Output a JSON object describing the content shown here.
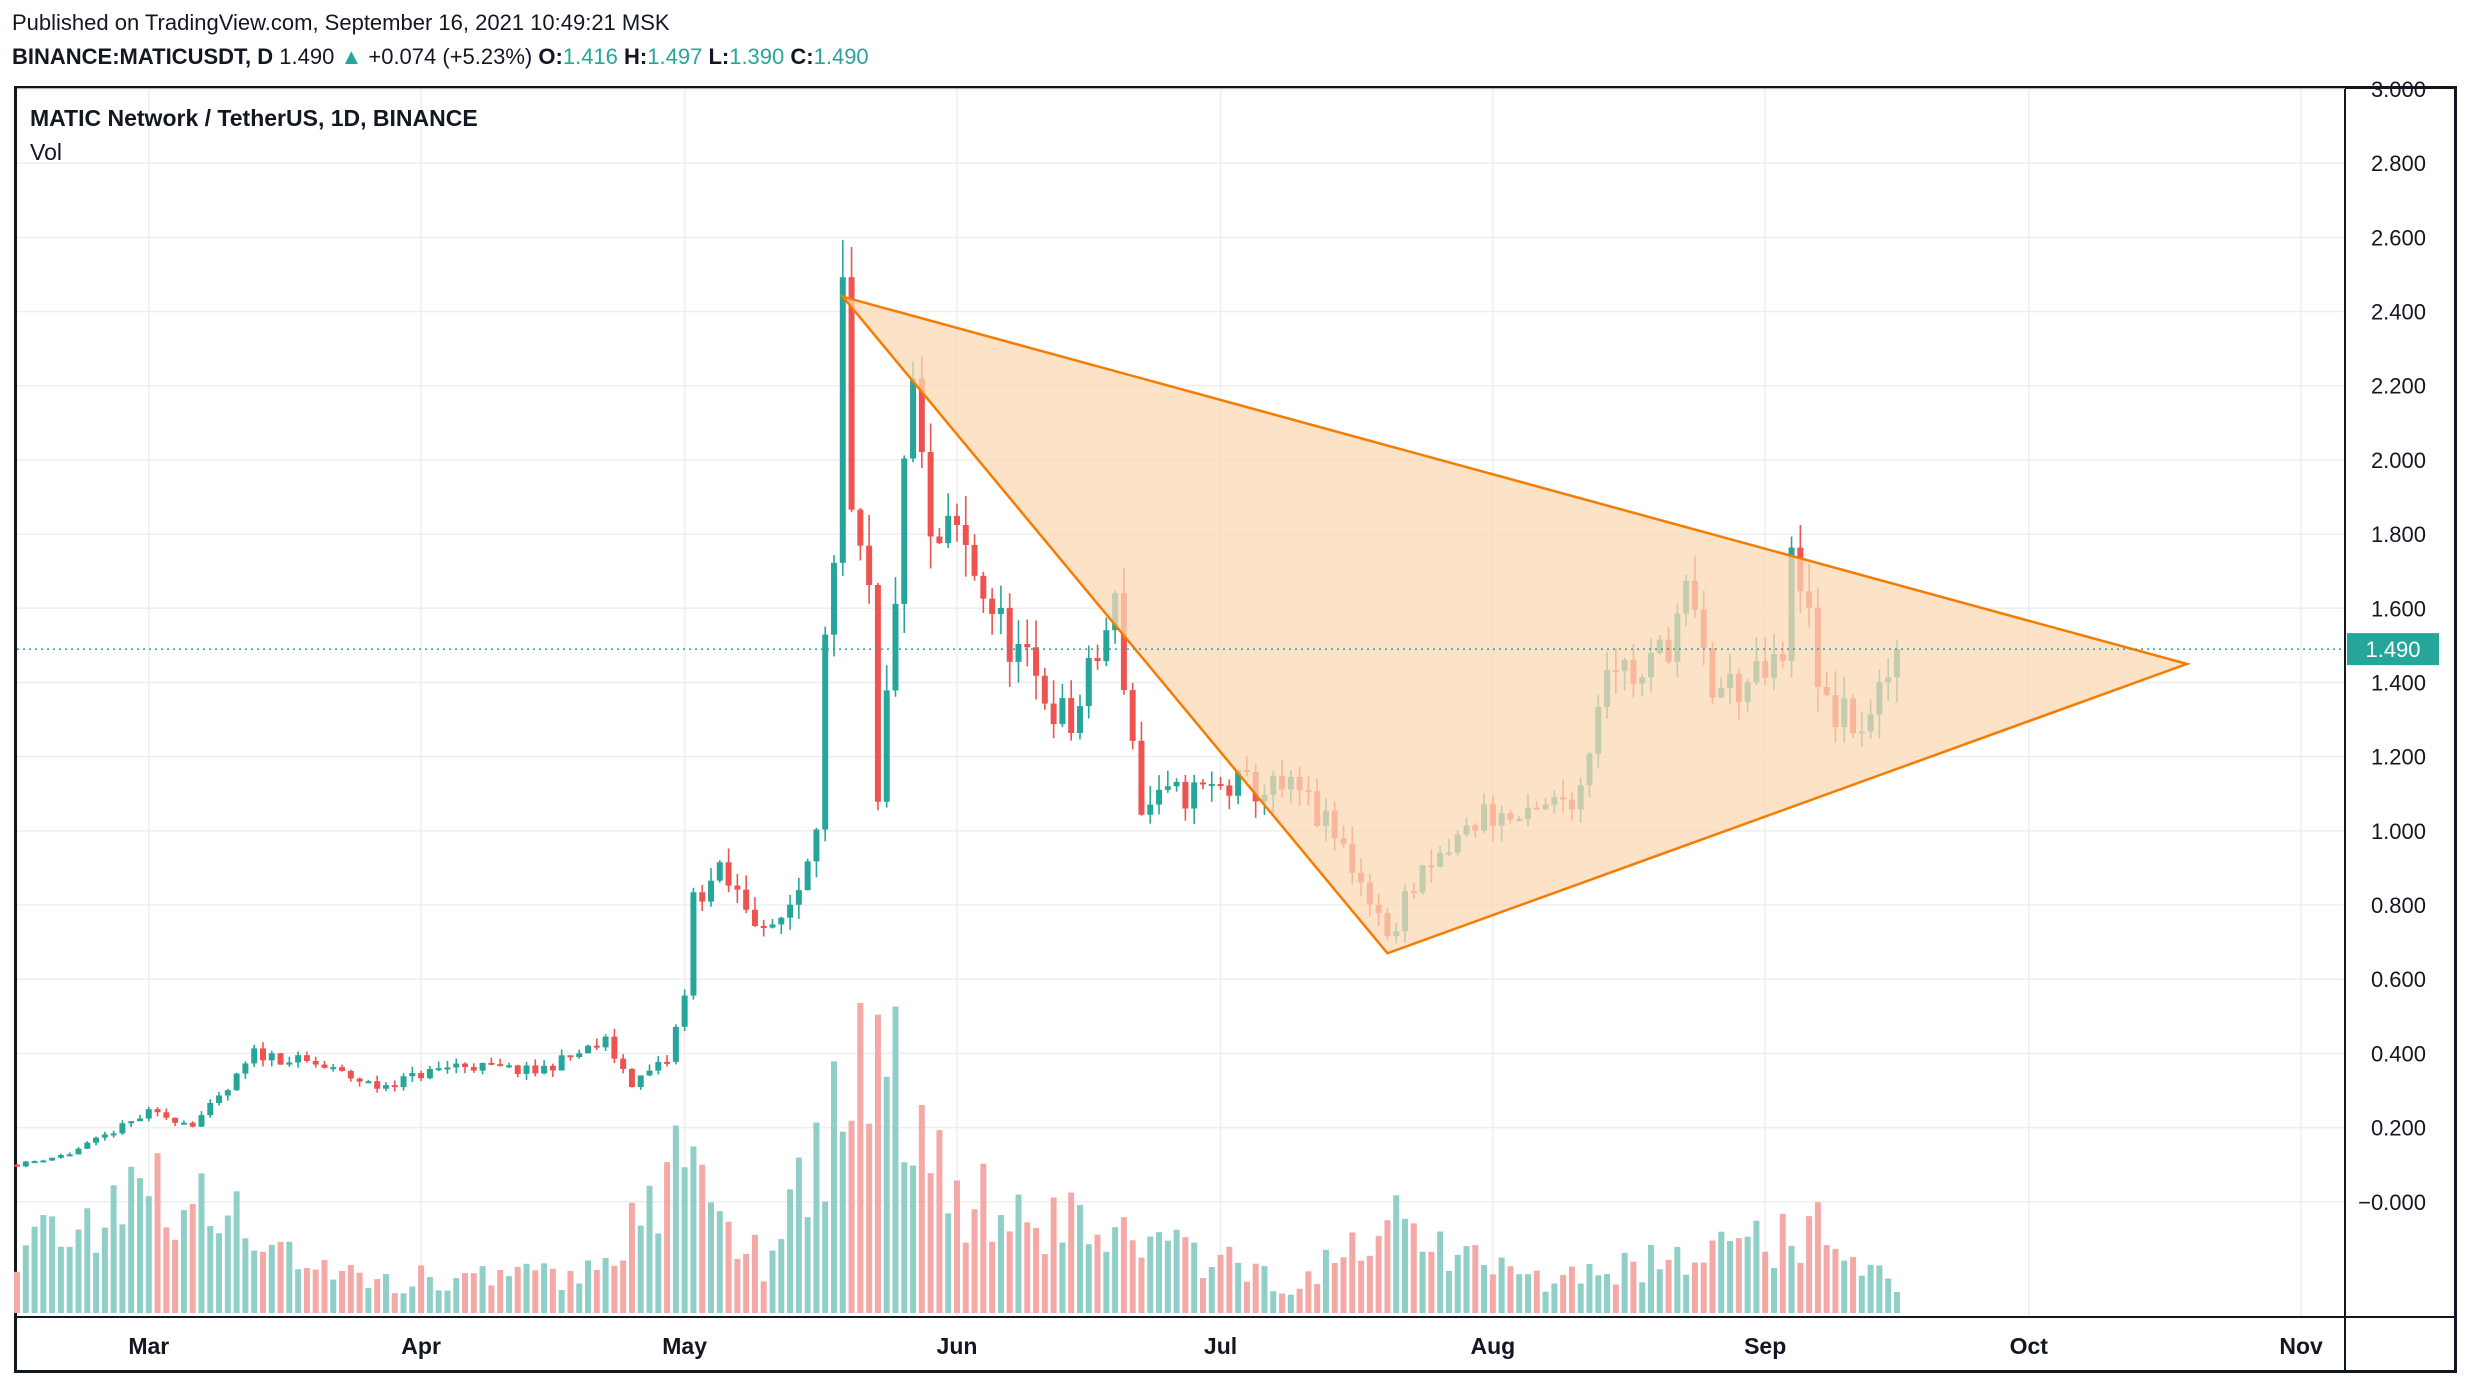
{
  "header": {
    "published": "Published on TradingView.com, September 16, 2021 10:49:21 MSK"
  },
  "quote": {
    "symbol": "BINANCE:MATICUSDT, D",
    "last": "1.490",
    "arrow": "▲",
    "change": "+0.074 (+5.23%)",
    "o_label": "O:",
    "o": "1.416",
    "h_label": "H:",
    "h": "1.497",
    "l_label": "L:",
    "l": "1.390",
    "c_label": "C:",
    "c": "1.490"
  },
  "legend": {
    "title": "MATIC Network / TetherUS, 1D, BINANCE",
    "volume": "Vol"
  },
  "colors": {
    "up": "#26a69a",
    "down": "#ef5350",
    "up_volume": "#8fcfc7",
    "down_volume": "#f4a9a6",
    "pattern_line": "#f57c00",
    "pattern_fill": "#fbd8b4",
    "price_label_bg": "#26a69a",
    "grid": "#eeeeee"
  },
  "chart_data": {
    "type": "candlestick",
    "title": "MATIC Network / TetherUS, 1D, BINANCE",
    "y_axis": {
      "ticks": [
        -0.0,
        0.2,
        0.4,
        0.6,
        0.8,
        1.0,
        1.2,
        1.4,
        1.6,
        1.8,
        2.0,
        2.2,
        2.4,
        2.6,
        2.8,
        3.0
      ],
      "tick_labels": [
        "−0.000",
        "0.200",
        "0.400",
        "0.600",
        "0.800",
        "1.000",
        "1.200",
        "1.400",
        "1.600",
        "1.800",
        "2.000",
        "2.200",
        "2.400",
        "2.600",
        "2.800",
        "3.000"
      ],
      "range": [
        -0.13,
        3.0
      ]
    },
    "x_axis": {
      "range": [
        "2021-02-14",
        "2021-11-06"
      ],
      "ticks": [
        {
          "date": "2021-03-01",
          "label": "Mar"
        },
        {
          "date": "2021-04-01",
          "label": "Apr"
        },
        {
          "date": "2021-05-01",
          "label": "May"
        },
        {
          "date": "2021-06-01",
          "label": "Jun"
        },
        {
          "date": "2021-07-01",
          "label": "Jul"
        },
        {
          "date": "2021-08-01",
          "label": "Aug"
        },
        {
          "date": "2021-09-01",
          "label": "Sep"
        },
        {
          "date": "2021-10-01",
          "label": "Oct"
        },
        {
          "date": "2021-11-01",
          "label": "Nov"
        }
      ]
    },
    "grid": true,
    "last_price": {
      "value": 1.49,
      "label": "1.490"
    },
    "close_keypoints": [
      {
        "date": "2021-02-14",
        "close": 0.1
      },
      {
        "date": "2021-02-20",
        "close": 0.13
      },
      {
        "date": "2021-02-25",
        "close": 0.19
      },
      {
        "date": "2021-03-01",
        "close": 0.24
      },
      {
        "date": "2021-03-06",
        "close": 0.21
      },
      {
        "date": "2021-03-10",
        "close": 0.3
      },
      {
        "date": "2021-03-13",
        "close": 0.4
      },
      {
        "date": "2021-03-20",
        "close": 0.37
      },
      {
        "date": "2021-03-27",
        "close": 0.31
      },
      {
        "date": "2021-04-05",
        "close": 0.37
      },
      {
        "date": "2021-04-14",
        "close": 0.35
      },
      {
        "date": "2021-04-22",
        "close": 0.43
      },
      {
        "date": "2021-04-25",
        "close": 0.32
      },
      {
        "date": "2021-04-29",
        "close": 0.38
      },
      {
        "date": "2021-05-01",
        "close": 0.55
      },
      {
        "date": "2021-05-02",
        "close": 0.82
      },
      {
        "date": "2021-05-05",
        "close": 0.88
      },
      {
        "date": "2021-05-08",
        "close": 0.8
      },
      {
        "date": "2021-05-11",
        "close": 0.72
      },
      {
        "date": "2021-05-14",
        "close": 0.85
      },
      {
        "date": "2021-05-16",
        "close": 1.05
      },
      {
        "date": "2021-05-17",
        "close": 1.5
      },
      {
        "date": "2021-05-18",
        "close": 1.65
      },
      {
        "date": "2021-05-19",
        "close": 2.43
      },
      {
        "date": "2021-05-20",
        "close": 1.8
      },
      {
        "date": "2021-05-22",
        "close": 1.62
      },
      {
        "date": "2021-05-23",
        "close": 1.05
      },
      {
        "date": "2021-05-25",
        "close": 1.65
      },
      {
        "date": "2021-05-27",
        "close": 2.21
      },
      {
        "date": "2021-05-29",
        "close": 1.75
      },
      {
        "date": "2021-06-01",
        "close": 1.8
      },
      {
        "date": "2021-06-06",
        "close": 1.55
      },
      {
        "date": "2021-06-10",
        "close": 1.4
      },
      {
        "date": "2021-06-14",
        "close": 1.28
      },
      {
        "date": "2021-06-19",
        "close": 1.6
      },
      {
        "date": "2021-06-22",
        "close": 1.06
      },
      {
        "date": "2021-06-27",
        "close": 1.1
      },
      {
        "date": "2021-07-03",
        "close": 1.12
      },
      {
        "date": "2021-07-10",
        "close": 1.1
      },
      {
        "date": "2021-07-15",
        "close": 0.95
      },
      {
        "date": "2021-07-19",
        "close": 0.78
      },
      {
        "date": "2021-07-20",
        "close": 0.7
      },
      {
        "date": "2021-07-22",
        "close": 0.82
      },
      {
        "date": "2021-07-26",
        "close": 0.92
      },
      {
        "date": "2021-07-31",
        "close": 1.05
      },
      {
        "date": "2021-08-05",
        "close": 1.02
      },
      {
        "date": "2021-08-11",
        "close": 1.12
      },
      {
        "date": "2021-08-14",
        "close": 1.48
      },
      {
        "date": "2021-08-18",
        "close": 1.4
      },
      {
        "date": "2021-08-21",
        "close": 1.52
      },
      {
        "date": "2021-08-23",
        "close": 1.63
      },
      {
        "date": "2021-08-26",
        "close": 1.38
      },
      {
        "date": "2021-08-31",
        "close": 1.4
      },
      {
        "date": "2021-09-03",
        "close": 1.45
      },
      {
        "date": "2021-09-04",
        "close": 1.72
      },
      {
        "date": "2021-09-06",
        "close": 1.65
      },
      {
        "date": "2021-09-07",
        "close": 1.35
      },
      {
        "date": "2021-09-10",
        "close": 1.3
      },
      {
        "date": "2021-09-13",
        "close": 1.28
      },
      {
        "date": "2021-09-14",
        "close": 1.35
      },
      {
        "date": "2021-09-15",
        "close": 1.42
      },
      {
        "date": "2021-09-16",
        "close": 1.49
      }
    ],
    "volume_keypoints": [
      {
        "date": "2021-02-14",
        "level": 0.25
      },
      {
        "date": "2021-02-28",
        "level": 0.45
      },
      {
        "date": "2021-03-10",
        "level": 0.35
      },
      {
        "date": "2021-03-25",
        "level": 0.12
      },
      {
        "date": "2021-04-20",
        "level": 0.15
      },
      {
        "date": "2021-05-01",
        "level": 0.55
      },
      {
        "date": "2021-05-10",
        "level": 0.2
      },
      {
        "date": "2021-05-19",
        "level": 0.85
      },
      {
        "date": "2021-05-24",
        "level": 1.0
      },
      {
        "date": "2021-06-01",
        "level": 0.45
      },
      {
        "date": "2021-06-20",
        "level": 0.3
      },
      {
        "date": "2021-07-10",
        "level": 0.1
      },
      {
        "date": "2021-07-20",
        "level": 0.35
      },
      {
        "date": "2021-08-05",
        "level": 0.12
      },
      {
        "date": "2021-08-20",
        "level": 0.2
      },
      {
        "date": "2021-09-07",
        "level": 0.3
      },
      {
        "date": "2021-09-16",
        "level": 0.08
      }
    ],
    "pattern": {
      "type": "triangle",
      "vertices": [
        {
          "date": "2021-05-19",
          "price": 2.44
        },
        {
          "date": "2021-07-20",
          "price": 0.67
        },
        {
          "date": "2021-10-19",
          "price": 1.45
        }
      ]
    }
  }
}
